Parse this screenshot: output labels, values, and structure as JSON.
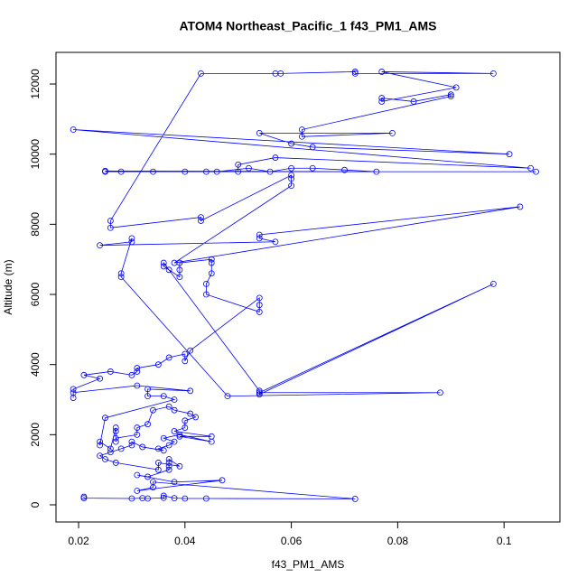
{
  "chart_data": {
    "type": "line",
    "markers": true,
    "title": "ATOM4 Northeast_Pacific_1 f43_PM1_AMS",
    "x_label": "f43_PM1_AMS",
    "y_label": "Altitude (m)",
    "xlim": [
      0.01575,
      0.1105
    ],
    "ylim": [
      -489,
      12902
    ],
    "xticks": [
      0.02,
      0.04,
      0.06,
      0.08,
      0.1
    ],
    "yticks": [
      0,
      2000,
      4000,
      6000,
      8000,
      10000,
      12000
    ],
    "series": [
      {
        "color": "#0000ff",
        "x": [
          0.021,
          0.021,
          0.03,
          0.032,
          0.033,
          0.036,
          0.036,
          0.038,
          0.04,
          0.044,
          0.072,
          0.034,
          0.034,
          0.031,
          0.047,
          0.038,
          0.031,
          0.033,
          0.037,
          0.037,
          0.037,
          0.037,
          0.039,
          0.035,
          0.035,
          0.027,
          0.025,
          0.024,
          0.026,
          0.028,
          0.03,
          0.03,
          0.032,
          0.036,
          0.035,
          0.037,
          0.038,
          0.036,
          0.039,
          0.045,
          0.039,
          0.045,
          0.038,
          0.04,
          0.04,
          0.042,
          0.041,
          0.038,
          0.037,
          0.034,
          0.033,
          0.031,
          0.031,
          0.027,
          0.027,
          0.027,
          0.027,
          0.026,
          0.024,
          0.024,
          0.025,
          0.038,
          0.036,
          0.033,
          0.033,
          0.041,
          0.031,
          0.019,
          0.019,
          0.019,
          0.024,
          0.021,
          0.026,
          0.03,
          0.031,
          0.031,
          0.035,
          0.037,
          0.04,
          0.04,
          0.041,
          0.054,
          0.054,
          0.054,
          0.044,
          0.044,
          0.045,
          0.045,
          0.045,
          0.039,
          0.039,
          0.039,
          0.037,
          0.036,
          0.036,
          0.054,
          0.054,
          0.098,
          0.054,
          0.088,
          0.048,
          0.028,
          0.028,
          0.03,
          0.03,
          0.024,
          0.057,
          0.054,
          0.054,
          0.103,
          0.038,
          0.06,
          0.06,
          0.06,
          0.043,
          0.043,
          0.026,
          0.026,
          0.043,
          0.057,
          0.058,
          0.072,
          0.072,
          0.098,
          0.077,
          0.091,
          0.077,
          0.077,
          0.083,
          0.09,
          0.09,
          0.062,
          0.062,
          0.079,
          0.054,
          0.06,
          0.064,
          0.101,
          0.019,
          0.105,
          0.057,
          0.05,
          0.05,
          0.106,
          0.025,
          0.028,
          0.034,
          0.04,
          0.044,
          0.046,
          0.052,
          0.056,
          0.06,
          0.064,
          0.07,
          0.076,
          0.025
        ],
        "values": [
          230,
          190,
          180,
          190,
          180,
          200,
          260,
          190,
          180,
          180,
          170,
          650,
          500,
          400,
          700,
          650,
          850,
          800,
          1000,
          1100,
          1200,
          1300,
          1100,
          1200,
          1000,
          1200,
          1300,
          1400,
          1500,
          1600,
          1700,
          1800,
          1650,
          1550,
          1600,
          1700,
          1800,
          1900,
          2000,
          1800,
          1950,
          1950,
          2100,
          2200,
          2400,
          2500,
          2600,
          2700,
          2800,
          2700,
          2300,
          2200,
          2000,
          1900,
          1800,
          2100,
          2200,
          1600,
          1800,
          1700,
          2480,
          3000,
          3100,
          3100,
          3300,
          3250,
          3400,
          3200,
          3050,
          3300,
          3600,
          3700,
          3800,
          3700,
          3800,
          3900,
          4000,
          4200,
          4300,
          4100,
          4400,
          5900,
          5700,
          5500,
          6000,
          6300,
          6600,
          6900,
          7000,
          6900,
          6700,
          6500,
          6700,
          6800,
          6900,
          3250,
          3150,
          6300,
          3200,
          3200,
          3100,
          6500,
          6600,
          7600,
          7500,
          7400,
          7500,
          7600,
          7700,
          8500,
          6900,
          9100,
          9300,
          9400,
          8100,
          8200,
          7900,
          8100,
          12300,
          12300,
          12300,
          12350,
          12300,
          12300,
          12350,
          11900,
          11500,
          11600,
          11500,
          11700,
          11650,
          10700,
          10500,
          10600,
          10600,
          10300,
          10200,
          10000,
          10700,
          9600,
          9900,
          9700,
          9500,
          9500,
          9500,
          9500,
          9500,
          9500,
          9500,
          9500,
          9600,
          9500,
          9600,
          9600,
          9550,
          9500,
          9520
        ]
      }
    ]
  }
}
